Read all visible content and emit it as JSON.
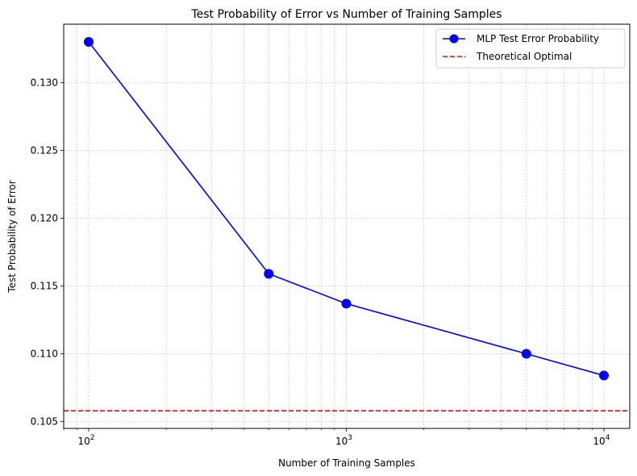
{
  "chart_data": {
    "type": "line",
    "title": "Test Probability of Error vs Number of Training Samples",
    "xlabel": "Number of Training Samples",
    "ylabel": "Test Probability of Error",
    "x_scale": "log",
    "xlim": [
      80,
      12600
    ],
    "ylim": [
      0.1045,
      0.1343
    ],
    "x_ticks": [
      {
        "value": 100,
        "base": "10",
        "exp": "2"
      },
      {
        "value": 1000,
        "base": "10",
        "exp": "3"
      },
      {
        "value": 10000,
        "base": "10",
        "exp": "4"
      }
    ],
    "y_ticks": [
      {
        "value": 0.105,
        "label": "0.105"
      },
      {
        "value": 0.11,
        "label": "0.110"
      },
      {
        "value": 0.115,
        "label": "0.115"
      },
      {
        "value": 0.12,
        "label": "0.120"
      },
      {
        "value": 0.125,
        "label": "0.125"
      },
      {
        "value": 0.13,
        "label": "0.130"
      }
    ],
    "grid": true,
    "legend_position": "top-right",
    "series": [
      {
        "name": "MLP Test Error Probability",
        "color": "#0000ff",
        "style": "solid-with-circle-markers",
        "x": [
          100,
          500,
          1000,
          5000,
          10000
        ],
        "y": [
          0.133,
          0.1159,
          0.1137,
          0.11,
          0.1084
        ]
      },
      {
        "name": "Theoretical Optimal",
        "color": "#ff0000",
        "style": "dashed-horizontal",
        "y": 0.1058
      }
    ]
  }
}
